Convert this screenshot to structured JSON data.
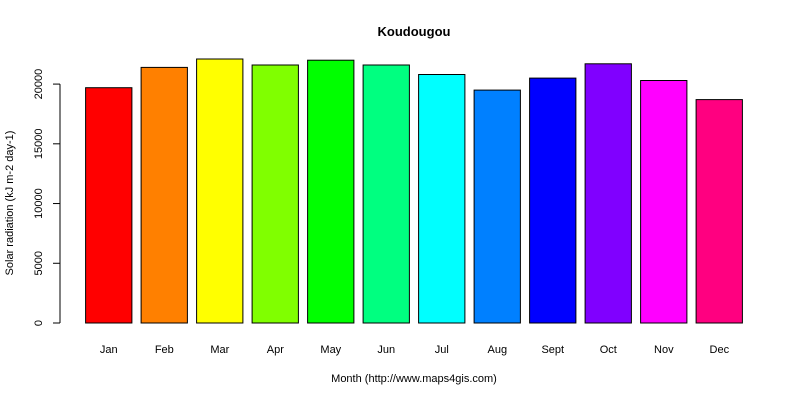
{
  "chart_data": {
    "type": "bar",
    "title": "Koudougou",
    "xlabel": "Month (http://www.maps4gis.com)",
    "ylabel": "Solar radiation (kJ m-2 day-1)",
    "categories": [
      "Jan",
      "Feb",
      "Mar",
      "Apr",
      "May",
      "Jun",
      "Jul",
      "Aug",
      "Sept",
      "Oct",
      "Nov",
      "Dec"
    ],
    "values": [
      19700,
      21400,
      22100,
      21600,
      22000,
      21600,
      20800,
      19500,
      20500,
      21700,
      20300,
      18700
    ],
    "colors": [
      "#FF0000",
      "#FF8000",
      "#FFFF00",
      "#80FF00",
      "#00FF00",
      "#00FF80",
      "#00FFFF",
      "#0080FF",
      "#0000FF",
      "#8000FF",
      "#FF00FF",
      "#FF0080"
    ],
    "ylim": [
      0,
      22100
    ],
    "yticks": [
      0,
      5000,
      10000,
      15000,
      20000
    ],
    "grid": false,
    "legend": "none"
  }
}
